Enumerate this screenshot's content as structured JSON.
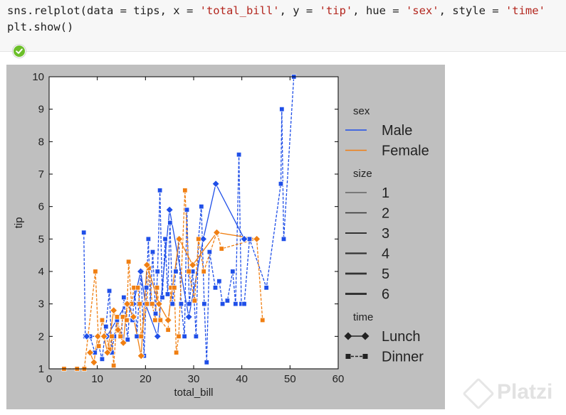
{
  "notebook": {
    "code_lines": [
      [
        {
          "t": "sns.relplot(data = tips, x = ",
          "s": false
        },
        {
          "t": "'total_bill'",
          "s": true
        },
        {
          "t": ", y = ",
          "s": false
        },
        {
          "t": "'tip'",
          "s": true
        },
        {
          "t": ", hue = ",
          "s": false
        },
        {
          "t": "'sex'",
          "s": true
        },
        {
          "t": ", style = ",
          "s": false
        },
        {
          "t": "'time'",
          "s": true
        }
      ],
      [
        {
          "t": "plt.show()",
          "s": false
        }
      ]
    ],
    "status_icon": "check-circle-icon",
    "status_color": "#6cbf2a"
  },
  "watermark": {
    "text": "Platzi"
  },
  "chart_data": {
    "type": "line",
    "xlabel": "total_bill",
    "ylabel": "tip",
    "xlim": [
      0,
      60
    ],
    "ylim": [
      1,
      10
    ],
    "xticks": [
      "0",
      "10",
      "20",
      "30",
      "40",
      "50",
      "60"
    ],
    "yticks": [
      "1",
      "2",
      "3",
      "4",
      "5",
      "6",
      "7",
      "8",
      "9",
      "10"
    ],
    "grid": false,
    "legend": {
      "placement": "right",
      "sections": [
        {
          "title": "sex",
          "entries": [
            {
              "label": "Male",
              "color": "#1f4fe8",
              "kind": "color"
            },
            {
              "label": "Female",
              "color": "#f07f12",
              "kind": "color"
            }
          ]
        },
        {
          "title": "size",
          "entries": [
            {
              "label": "1",
              "kind": "size",
              "weight": 1
            },
            {
              "label": "2",
              "kind": "size",
              "weight": 2
            },
            {
              "label": "3",
              "kind": "size",
              "weight": 3
            },
            {
              "label": "4",
              "kind": "size",
              "weight": 4
            },
            {
              "label": "5",
              "kind": "size",
              "weight": 5
            },
            {
              "label": "6",
              "kind": "size",
              "weight": 6
            }
          ]
        },
        {
          "title": "time",
          "entries": [
            {
              "label": "Lunch",
              "kind": "style",
              "marker": "diamond",
              "dash": "solid"
            },
            {
              "label": "Dinner",
              "kind": "style",
              "marker": "square",
              "dash": "dashed"
            }
          ]
        }
      ]
    },
    "series": [
      {
        "name": "Male",
        "time": "Dinner",
        "color": "#1f4fe8",
        "marker": "square",
        "dash": "dashed",
        "points": [
          [
            7.2,
            5.2
          ],
          [
            7.5,
            2.0
          ],
          [
            8.5,
            2.0
          ],
          [
            9.5,
            1.5
          ],
          [
            10.3,
            1.7
          ],
          [
            11.0,
            1.3
          ],
          [
            11.8,
            2.3
          ],
          [
            12.5,
            3.4
          ],
          [
            13.0,
            1.5
          ],
          [
            13.5,
            2.0
          ],
          [
            14.1,
            2.5
          ],
          [
            15.0,
            2.0
          ],
          [
            15.5,
            3.2
          ],
          [
            16.3,
            1.9
          ],
          [
            16.8,
            3.0
          ],
          [
            17.3,
            2.5
          ],
          [
            17.8,
            3.5
          ],
          [
            18.2,
            2.0
          ],
          [
            18.6,
            3.0
          ],
          [
            19.1,
            4.0
          ],
          [
            19.7,
            1.4
          ],
          [
            20.2,
            3.5
          ],
          [
            20.6,
            5.0
          ],
          [
            21.0,
            3.0
          ],
          [
            21.5,
            4.6
          ],
          [
            22.1,
            2.7
          ],
          [
            22.5,
            4.0
          ],
          [
            23.0,
            6.5
          ],
          [
            23.5,
            3.2
          ],
          [
            24.1,
            5.0
          ],
          [
            24.6,
            3.3
          ],
          [
            25.1,
            5.5
          ],
          [
            25.6,
            3.0
          ],
          [
            26.3,
            4.0
          ],
          [
            26.9,
            5.0
          ],
          [
            27.4,
            3.0
          ],
          [
            28.1,
            2.0
          ],
          [
            28.6,
            5.9
          ],
          [
            29.1,
            3.0
          ],
          [
            29.8,
            4.0
          ],
          [
            30.5,
            2.0
          ],
          [
            31.0,
            5.0
          ],
          [
            31.6,
            6.0
          ],
          [
            32.2,
            3.0
          ],
          [
            32.7,
            1.2
          ],
          [
            33.3,
            4.6
          ],
          [
            34.5,
            3.5
          ],
          [
            35.3,
            3.7
          ],
          [
            36.0,
            3.0
          ],
          [
            37.0,
            3.1
          ],
          [
            38.1,
            4.0
          ],
          [
            38.7,
            3.0
          ],
          [
            39.4,
            7.6
          ],
          [
            39.9,
            3.0
          ],
          [
            40.5,
            3.0
          ],
          [
            41.6,
            5.0
          ],
          [
            45.1,
            3.5
          ],
          [
            48.1,
            6.7
          ],
          [
            48.3,
            9.0
          ],
          [
            48.7,
            5.0
          ],
          [
            50.8,
            10.0
          ]
        ]
      },
      {
        "name": "Male",
        "time": "Lunch",
        "color": "#1f4fe8",
        "marker": "diamond",
        "dash": "solid",
        "points": [
          [
            7.8,
            2.0
          ],
          [
            12.0,
            2.0
          ],
          [
            16.0,
            3.0
          ],
          [
            17.5,
            3.0
          ],
          [
            19.0,
            4.0
          ],
          [
            20.0,
            3.0
          ],
          [
            22.5,
            2.0
          ],
          [
            25.0,
            5.9
          ],
          [
            29.0,
            2.6
          ],
          [
            32.0,
            5.0
          ],
          [
            34.6,
            6.7
          ],
          [
            40.5,
            5.0
          ]
        ]
      },
      {
        "name": "Female",
        "time": "Dinner",
        "color": "#f07f12",
        "marker": "square",
        "dash": "dashed",
        "points": [
          [
            3.1,
            1.0
          ],
          [
            5.8,
            1.0
          ],
          [
            7.3,
            1.0
          ],
          [
            9.6,
            4.0
          ],
          [
            10.3,
            1.7
          ],
          [
            11.0,
            2.5
          ],
          [
            12.5,
            1.6
          ],
          [
            13.0,
            2.0
          ],
          [
            13.4,
            1.1
          ],
          [
            14.1,
            2.6
          ],
          [
            14.8,
            2.0
          ],
          [
            15.3,
            2.6
          ],
          [
            16.1,
            2.5
          ],
          [
            16.5,
            4.3
          ],
          [
            17.1,
            3.0
          ],
          [
            17.6,
            3.5
          ],
          [
            18.4,
            3.5
          ],
          [
            18.8,
            3.0
          ],
          [
            19.1,
            2.0
          ],
          [
            20.3,
            3.0
          ],
          [
            20.7,
            4.1
          ],
          [
            21.4,
            3.0
          ],
          [
            22.0,
            2.5
          ],
          [
            22.4,
            3.5
          ],
          [
            23.1,
            2.5
          ],
          [
            24.7,
            2.2
          ],
          [
            25.3,
            3.5
          ],
          [
            26.0,
            3.5
          ],
          [
            26.4,
            1.5
          ],
          [
            26.9,
            2.0
          ],
          [
            28.2,
            6.5
          ],
          [
            29.0,
            4.0
          ],
          [
            30.2,
            3.1
          ],
          [
            31.0,
            5.0
          ],
          [
            32.1,
            4.0
          ],
          [
            34.8,
            5.2
          ],
          [
            35.8,
            4.7
          ],
          [
            43.1,
            5.0
          ],
          [
            44.3,
            2.5
          ]
        ]
      },
      {
        "name": "Female",
        "time": "Lunch",
        "color": "#f07f12",
        "marker": "diamond",
        "dash": "solid",
        "points": [
          [
            8.5,
            1.5
          ],
          [
            9.3,
            1.2
          ],
          [
            10.1,
            2.0
          ],
          [
            11.4,
            2.0
          ],
          [
            12.1,
            1.5
          ],
          [
            13.4,
            2.8
          ],
          [
            14.3,
            2.2
          ],
          [
            15.4,
            1.8
          ],
          [
            16.2,
            3.0
          ],
          [
            17.5,
            2.6
          ],
          [
            19.1,
            1.4
          ],
          [
            20.3,
            4.2
          ],
          [
            22.8,
            3.0
          ],
          [
            24.7,
            2.5
          ],
          [
            27.0,
            5.0
          ],
          [
            29.8,
            4.2
          ],
          [
            34.8,
            5.2
          ],
          [
            43.1,
            5.0
          ]
        ]
      }
    ]
  }
}
